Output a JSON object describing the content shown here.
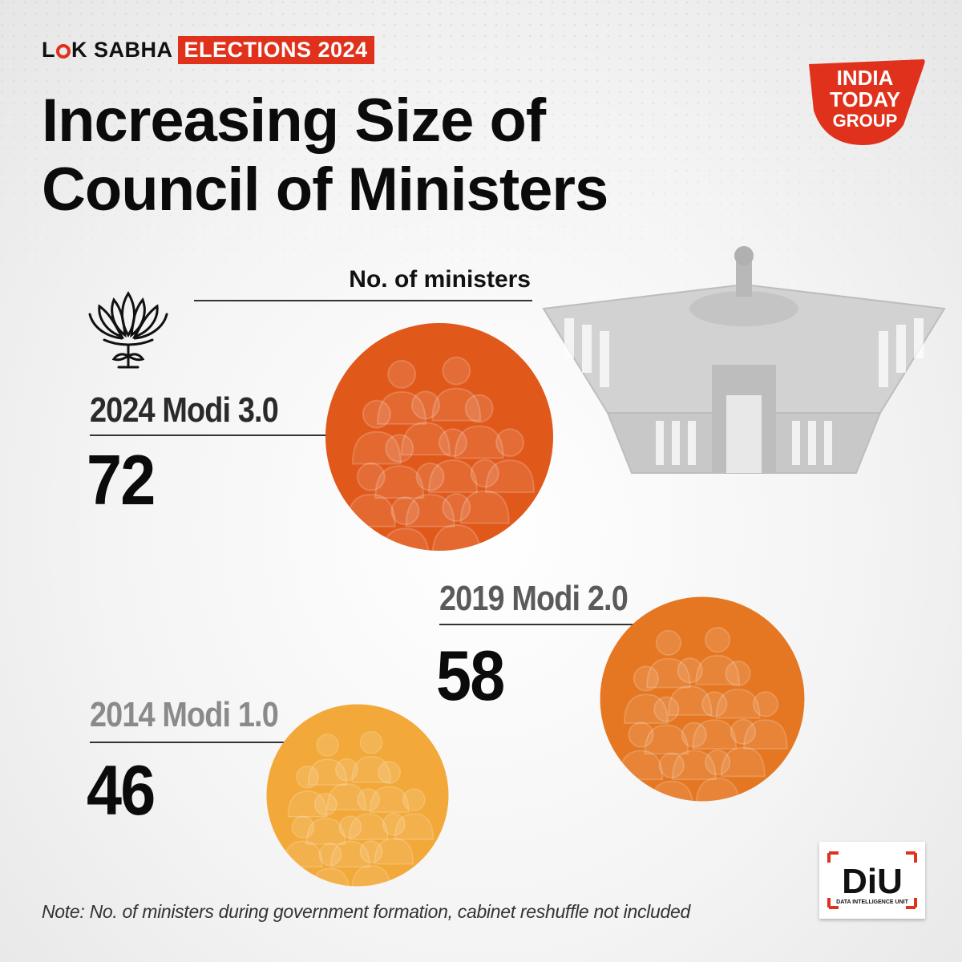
{
  "header": {
    "brand_part1": "L",
    "brand_part2": "K SABHA",
    "brand_highlight": "ELECTIONS 2024",
    "publisher_logo_text": [
      "INDIA",
      "TODAY",
      "GROUP"
    ]
  },
  "title": "Increasing Size of Council of Ministers",
  "legend": {
    "label": "No. of ministers"
  },
  "icons": {
    "party_symbol": "lotus-icon",
    "building": "parliament-icon",
    "bubble_fill": "people-group-icon"
  },
  "colors": {
    "accent": "#e0311c",
    "bubble_2024": "#e0581a",
    "bubble_2019": "#e57722",
    "bubble_2014": "#f2a93a"
  },
  "chart_data": {
    "type": "bubble",
    "title": "Increasing Size of Council of Ministers",
    "size_label": "No. of ministers",
    "categories": [
      "2024 Modi 3.0",
      "2019 Modi 2.0",
      "2014 Modi 1.0"
    ],
    "values": [
      72,
      58,
      46
    ],
    "series": [
      {
        "values": [
          72,
          58,
          46
        ]
      }
    ]
  },
  "terms": {
    "t2024": {
      "label": "2024 Modi 3.0",
      "value": "72"
    },
    "t2019": {
      "label": "2019 Modi 2.0",
      "value": "58"
    },
    "t2014": {
      "label": "2014 Modi 1.0",
      "value": "46"
    }
  },
  "footer": {
    "note": "Note: No. of ministers during government formation, cabinet reshuffle not included",
    "diu_logo": "DiU",
    "diu_caption": "DATA INTELLIGENCE UNIT"
  }
}
